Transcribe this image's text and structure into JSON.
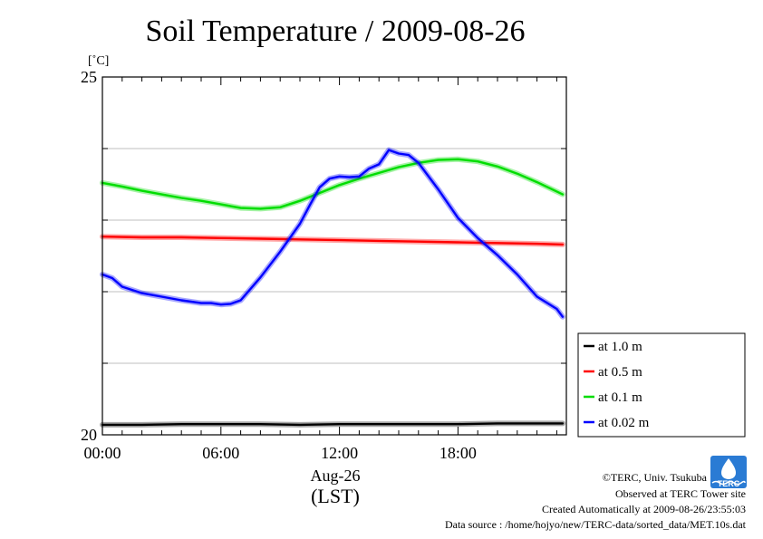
{
  "chart_data": {
    "type": "line",
    "title": "Soil Temperature / 2009-08-26",
    "ylabel": "[˚C]",
    "xlabel_line1": "Aug-26",
    "xlabel_line2": "(LST)",
    "ylim": [
      20,
      25
    ],
    "xlim": [
      0,
      23.5
    ],
    "y_ticks": [
      20,
      25
    ],
    "y_tick_labels": [
      "20",
      "25"
    ],
    "x_ticks": [
      0,
      6,
      12,
      18
    ],
    "x_tick_labels": [
      "00:00",
      "06:00",
      "12:00",
      "18:00"
    ],
    "grid": true,
    "legend_position": "lower-right",
    "series": [
      {
        "name": "at 1.0 m",
        "color": "#000000",
        "x": [
          0,
          2,
          4,
          6,
          8,
          10,
          12,
          14,
          16,
          18,
          20,
          22,
          23.3
        ],
        "y": [
          20.14,
          20.14,
          20.15,
          20.15,
          20.15,
          20.14,
          20.15,
          20.15,
          20.15,
          20.15,
          20.16,
          20.16,
          20.16
        ]
      },
      {
        "name": "at 0.5 m",
        "color": "#ff0000",
        "x": [
          0,
          2,
          4,
          6,
          8,
          10,
          12,
          14,
          16,
          18,
          20,
          22,
          23.3
        ],
        "y": [
          22.77,
          22.76,
          22.76,
          22.75,
          22.74,
          22.73,
          22.72,
          22.71,
          22.7,
          22.69,
          22.68,
          22.67,
          22.66
        ]
      },
      {
        "name": "at 0.1 m",
        "color": "#00dd00",
        "x": [
          0,
          1,
          2,
          3,
          4,
          5,
          6,
          7,
          8,
          9,
          10,
          11,
          12,
          13,
          14,
          15,
          16,
          17,
          18,
          19,
          20,
          21,
          22,
          23,
          23.3
        ],
        "y": [
          23.52,
          23.47,
          23.41,
          23.36,
          23.31,
          23.27,
          23.22,
          23.17,
          23.16,
          23.18,
          23.27,
          23.38,
          23.49,
          23.58,
          23.66,
          23.74,
          23.8,
          23.84,
          23.85,
          23.82,
          23.75,
          23.65,
          23.53,
          23.4,
          23.36
        ]
      },
      {
        "name": "at 0.02 m",
        "color": "#0000ff",
        "x": [
          0,
          0.5,
          1,
          2,
          3,
          4,
          5,
          5.5,
          6,
          6.5,
          7,
          8,
          9,
          10,
          10.5,
          11,
          11.5,
          12,
          12.5,
          13,
          13.5,
          14,
          14.5,
          15,
          15.5,
          16,
          17,
          18,
          19,
          20,
          21,
          22,
          23,
          23.3
        ],
        "y": [
          22.24,
          22.19,
          22.07,
          21.98,
          21.93,
          21.88,
          21.84,
          21.84,
          21.82,
          21.83,
          21.88,
          22.2,
          22.56,
          22.95,
          23.21,
          23.46,
          23.58,
          23.61,
          23.6,
          23.61,
          23.72,
          23.78,
          23.98,
          23.93,
          23.91,
          23.8,
          23.43,
          23.03,
          22.75,
          22.51,
          22.24,
          21.93,
          21.76,
          21.65
        ]
      }
    ]
  },
  "footer": {
    "copyright": "©TERC, Univ. Tsukuba",
    "observed": "Observed at TERC Tower site",
    "created": "Created Automatically at 2009-08-26/23:55:03",
    "source": "Data source : /home/hojyo/new/TERC-data/sorted_data/MET.10s.dat",
    "logo_text": "TERC"
  },
  "colors": {
    "grid": "#aaaaaa",
    "frame": "#000000"
  }
}
